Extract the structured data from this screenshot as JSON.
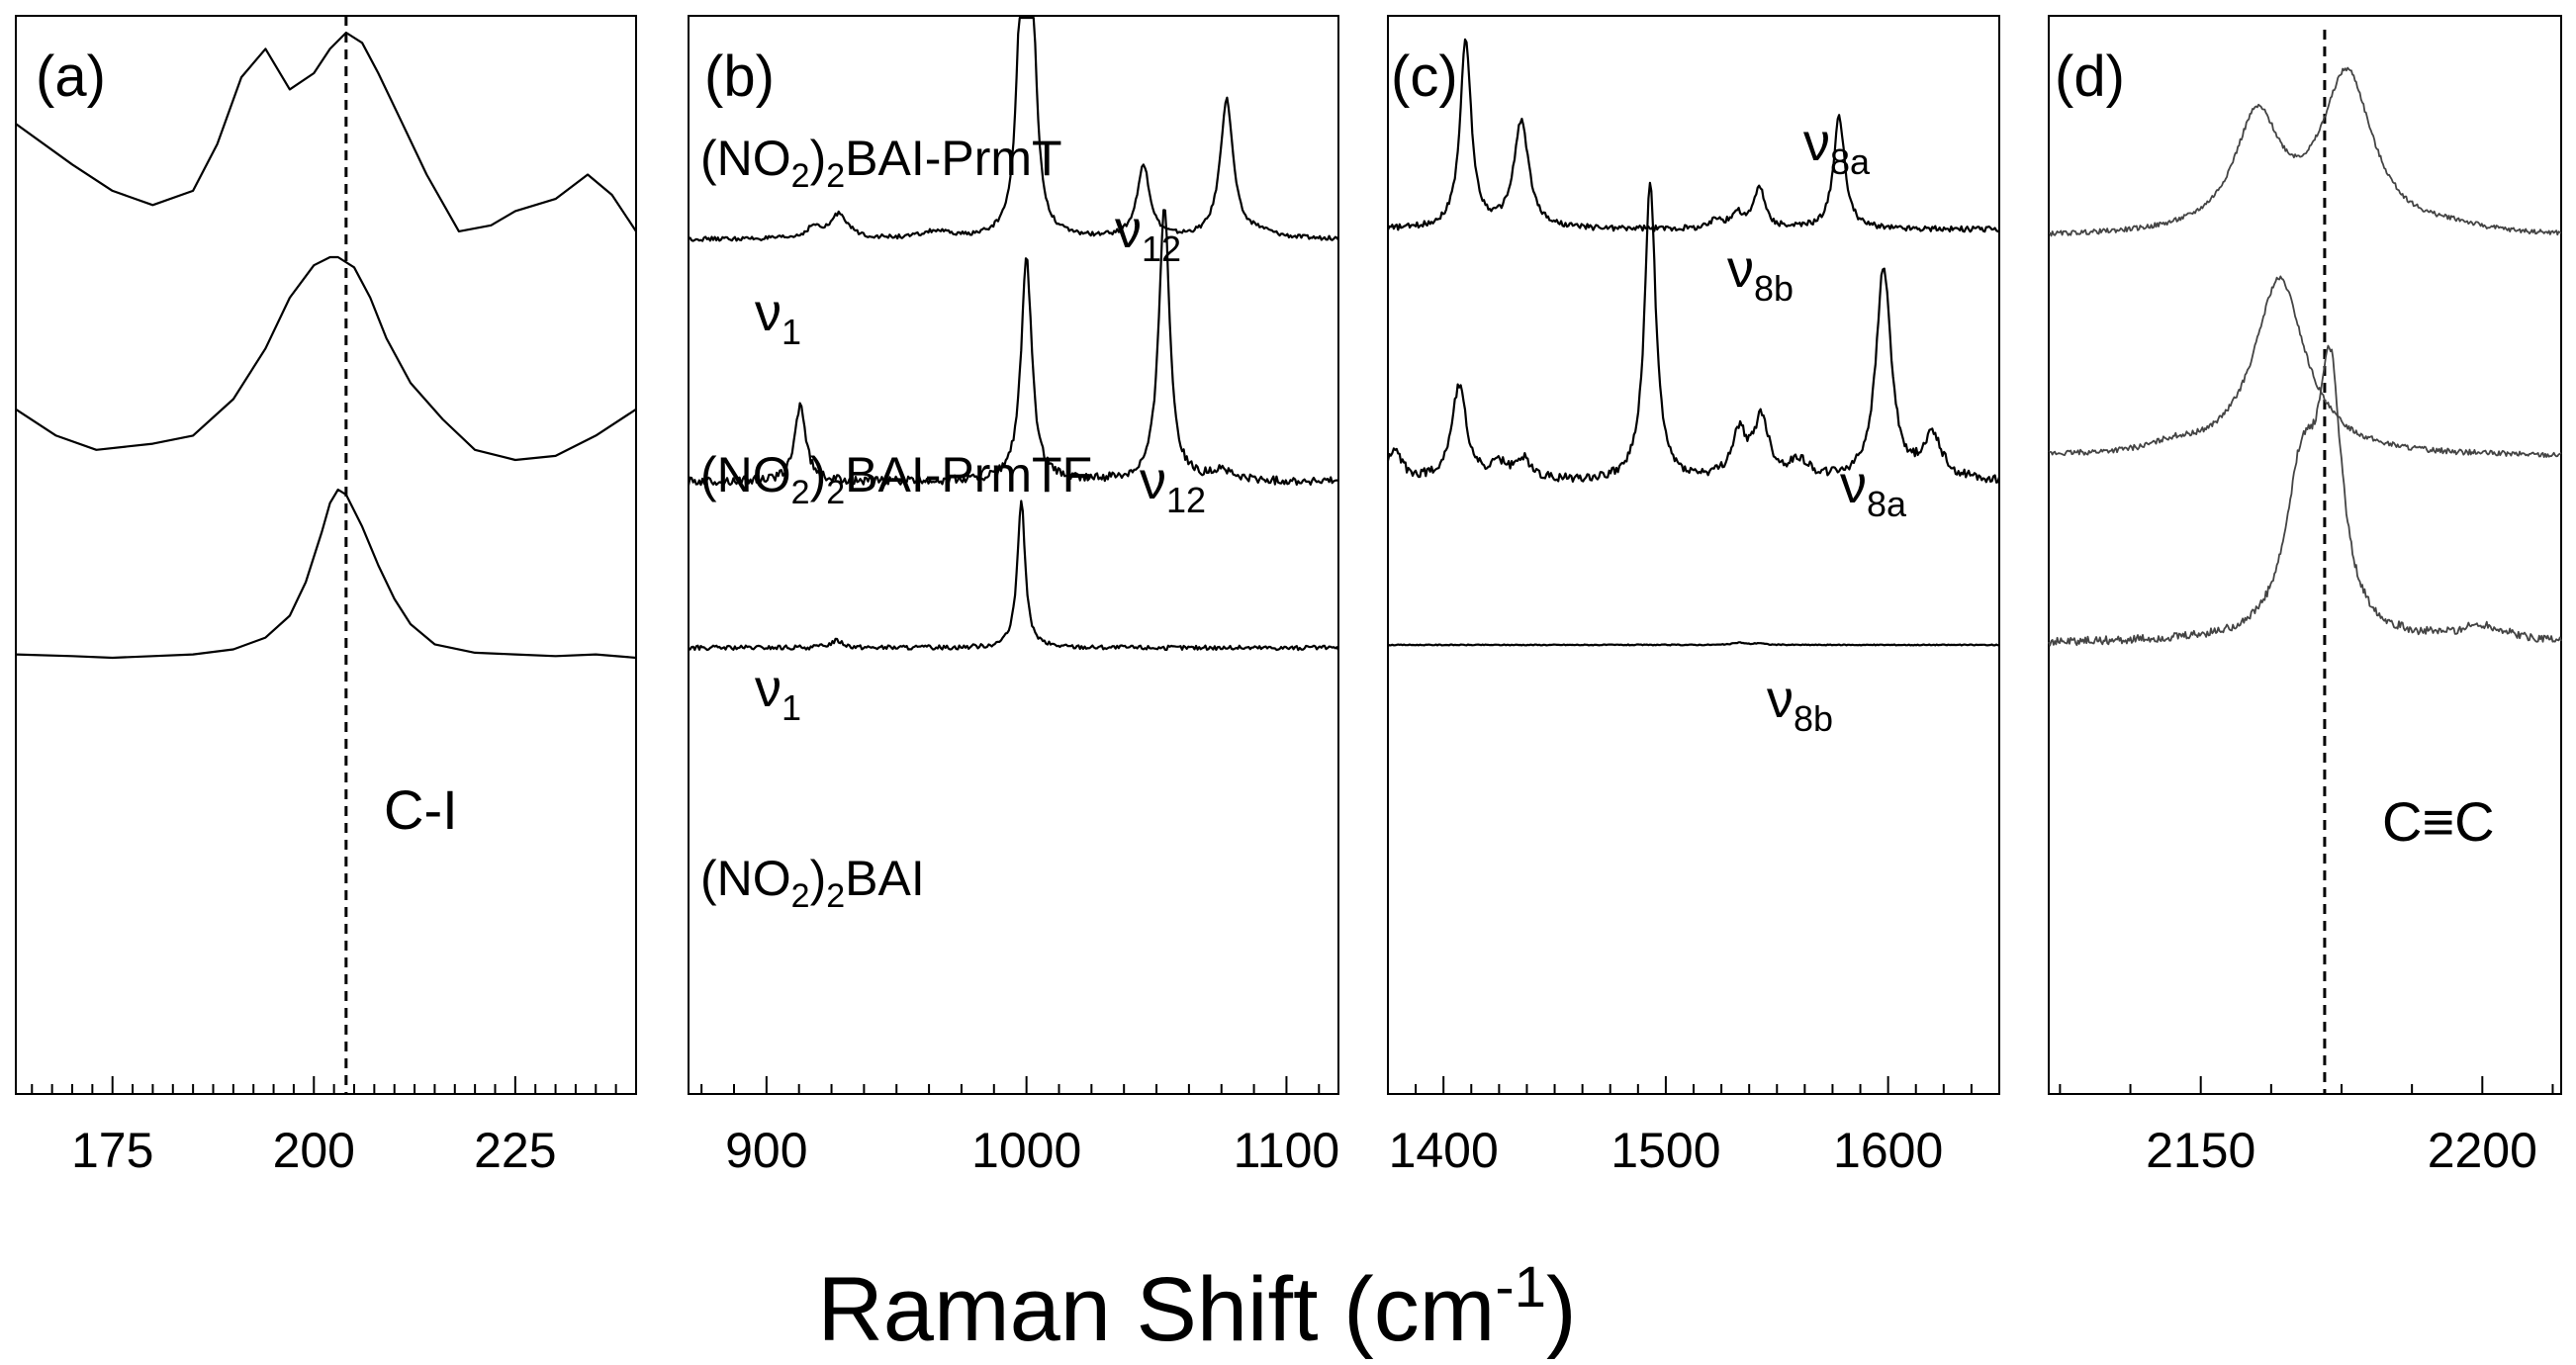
{
  "figure": {
    "xlabel": "Raman Shift (cm",
    "xlabel_sup": "-1",
    "xlabel_end": ")"
  },
  "chart_data": [
    {
      "type": "line",
      "panel": "(a)",
      "xlim": [
        163,
        240
      ],
      "xticks": [
        175,
        200,
        225
      ],
      "minor_step": 2.5,
      "vline": 204,
      "annotations": [
        {
          "text": "C-I"
        }
      ],
      "series": [
        {
          "name": "(NO2)2BAI-PrmT",
          "x": [
            163,
            170,
            175,
            180,
            185,
            188,
            191,
            194,
            197,
            200,
            202,
            204,
            206,
            208,
            211,
            214,
            218,
            222,
            225,
            230,
            234,
            237,
            240
          ],
          "y": [
            0.55,
            0.35,
            0.22,
            0.15,
            0.22,
            0.45,
            0.78,
            0.92,
            0.72,
            0.8,
            0.92,
            1.0,
            0.95,
            0.8,
            0.55,
            0.3,
            0.02,
            0.05,
            0.12,
            0.18,
            0.3,
            0.2,
            0.02
          ]
        },
        {
          "name": "(NO2)2BAI-PrmTF",
          "x": [
            163,
            168,
            173,
            180,
            185,
            190,
            194,
            197,
            200,
            202,
            203,
            205,
            207,
            209,
            212,
            216,
            220,
            225,
            230,
            235,
            240
          ],
          "y": [
            0.25,
            0.12,
            0.05,
            0.08,
            0.12,
            0.3,
            0.55,
            0.8,
            0.96,
            1.0,
            1.0,
            0.95,
            0.8,
            0.6,
            0.38,
            0.2,
            0.05,
            0.0,
            0.02,
            0.12,
            0.25
          ]
        },
        {
          "name": "(NO2)2BAI",
          "x": [
            163,
            170,
            175,
            180,
            185,
            190,
            194,
            197,
            199,
            201,
            202,
            203,
            204,
            206,
            208,
            210,
            212,
            215,
            220,
            225,
            230,
            235,
            240
          ],
          "y": [
            0.02,
            0.01,
            0.0,
            0.01,
            0.02,
            0.05,
            0.12,
            0.25,
            0.45,
            0.75,
            0.92,
            1.0,
            0.97,
            0.78,
            0.55,
            0.35,
            0.2,
            0.08,
            0.03,
            0.02,
            0.01,
            0.02,
            0.0
          ]
        }
      ]
    },
    {
      "type": "line",
      "panel": "(b)",
      "xlim": [
        870,
        1120
      ],
      "xticks": [
        900,
        1000,
        1100
      ],
      "minor_step": 12.5,
      "annotations": [
        {
          "text": "(NO",
          "sub1": "2",
          "mid": ")",
          "sub2": "2",
          "tail": "BAI-PrmT"
        },
        {
          "text": "(NO",
          "sub1": "2",
          "mid": ")",
          "sub2": "2",
          "tail": "BAI-PrmTF"
        },
        {
          "text": "(NO",
          "sub1": "2",
          "mid": ")",
          "sub2": "2",
          "tail": "BAI"
        },
        {
          "text": "ν",
          "sub": "1"
        },
        {
          "text": "ν",
          "sub": "12"
        },
        {
          "text": "ν",
          "sub": "1"
        },
        {
          "text": "ν",
          "sub": "12"
        }
      ],
      "series": [
        {
          "name": "(NO2)2BAI-PrmT",
          "peaks": [
            [
              918,
              0.08,
              3
            ],
            [
              928,
              0.18,
              4
            ],
            [
              965,
              0.05,
              6
            ],
            [
              998,
              1.6,
              2.2
            ],
            [
              1002,
              1.6,
              2.2
            ],
            [
              1045,
              0.52,
              3
            ],
            [
              1077,
              1.0,
              3
            ],
            [
              1090,
              0.04,
              6
            ]
          ]
        },
        {
          "name": "(NO2)2BAI-PrmTF",
          "peaks": [
            [
              913,
              0.28,
              2.5
            ],
            [
              1000,
              0.8,
              2.5
            ],
            [
              1053,
              1.0,
              2.5
            ],
            [
              1075,
              0.04,
              4
            ]
          ]
        },
        {
          "name": "(NO2)2BAI",
          "peaks": [
            [
              927,
              0.05,
              3
            ],
            [
              998,
              1.0,
              1.8
            ]
          ]
        }
      ]
    },
    {
      "type": "line",
      "panel": "(c)",
      "xlim": [
        1375,
        1650
      ],
      "xticks": [
        1400,
        1500,
        1600
      ],
      "minor_step": 12.5,
      "annotations": [
        {
          "text": "ν",
          "sub": "8a"
        },
        {
          "text": "ν",
          "sub": "8b"
        },
        {
          "text": "ν",
          "sub": "8a"
        },
        {
          "text": "ν",
          "sub": "8b"
        }
      ],
      "series": [
        {
          "name": "(NO2)2BAI-PrmT",
          "peaks": [
            [
              1410,
              1.0,
              3
            ],
            [
              1435,
              0.57,
              4
            ],
            [
              1523,
              0.05,
              3
            ],
            [
              1532,
              0.08,
              3
            ],
            [
              1542,
              0.22,
              3
            ],
            [
              1578,
              0.6,
              3
            ]
          ]
        },
        {
          "name": "(NO2)2BAI-PrmTF",
          "peaks": [
            [
              1378,
              0.1,
              4
            ],
            [
              1407,
              0.32,
              4
            ],
            [
              1425,
              0.05,
              4
            ],
            [
              1436,
              0.07,
              4
            ],
            [
              1493,
              1.0,
              3
            ],
            [
              1533,
              0.15,
              4
            ],
            [
              1543,
              0.2,
              4
            ],
            [
              1560,
              0.06,
              5
            ],
            [
              1598,
              0.72,
              4
            ],
            [
              1620,
              0.15,
              5
            ]
          ]
        },
        {
          "name": "(NO2)2BAI",
          "peaks": [
            [
              1533,
              0.08,
              3
            ],
            [
              1542,
              0.06,
              2.5
            ]
          ]
        }
      ]
    },
    {
      "type": "line",
      "panel": "(d)",
      "xlim": [
        2123,
        2214
      ],
      "xticks": [
        2150,
        2200
      ],
      "minor_step": 12.5,
      "vline": 2172,
      "annotations": [
        {
          "text": "C≡C"
        }
      ],
      "series": [
        {
          "name": "(NO2)2BAI-PrmT",
          "peaks": [
            [
              2160,
              0.72,
              5
            ],
            [
              2176,
              1.0,
              5.5
            ],
            [
              2195,
              0.03,
              5
            ]
          ]
        },
        {
          "name": "(NO2)2BAI-PrmTF",
          "peaks": [
            [
              2164,
              1.0,
              5.5
            ],
            [
              2145,
              0.04,
              4
            ]
          ]
        },
        {
          "name": "(NO2)2BAI",
          "peaks": [
            [
              2168,
              0.55,
              3.5
            ],
            [
              2173,
              0.85,
              2.5
            ],
            [
              2200,
              0.05,
              5
            ]
          ]
        }
      ]
    }
  ]
}
